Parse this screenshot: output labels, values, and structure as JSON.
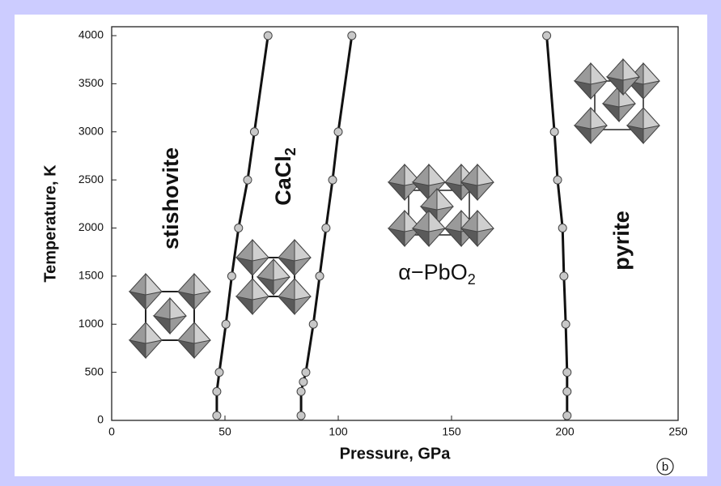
{
  "chart_data": {
    "type": "line",
    "x_label": "Pressure, GPa",
    "y_label": "Temperature, K",
    "panel_label": "b",
    "xlim": [
      0,
      250
    ],
    "xticks": [
      0,
      50,
      100,
      150,
      200,
      250
    ],
    "ylim": [
      0,
      4000
    ],
    "yticks": [
      0,
      500,
      1000,
      1500,
      2000,
      2500,
      3000,
      3500,
      4000
    ],
    "series": [
      {
        "color": "#111111",
        "x": [
          69,
          63,
          60,
          56,
          53,
          50.4,
          47.5,
          46.4,
          46.4
        ],
        "values": [
          4000,
          3000,
          2500,
          2000,
          1500,
          1000,
          500,
          300,
          50
        ]
      },
      {
        "color": "#111111",
        "x": [
          106,
          100,
          97.5,
          94.6,
          91.8,
          89,
          85.7,
          84.6,
          83.6,
          83.6
        ],
        "values": [
          4000,
          3000,
          2500,
          2000,
          1500,
          1000,
          500,
          400,
          300,
          50
        ]
      },
      {
        "color": "#111111",
        "x": [
          192,
          195.4,
          196.8,
          199,
          199.6,
          200.4,
          201,
          201,
          201
        ],
        "values": [
          4000,
          3000,
          2500,
          2000,
          1500,
          1000,
          500,
          300,
          50
        ]
      }
    ],
    "marker_color": "#c8c8c8",
    "annotations": [
      {
        "text": "stishovite"
      },
      {
        "text": "CaCl",
        "subscript": "2"
      },
      {
        "text": "α−PbO",
        "subscript": "2"
      },
      {
        "text": "pyrite"
      }
    ]
  }
}
